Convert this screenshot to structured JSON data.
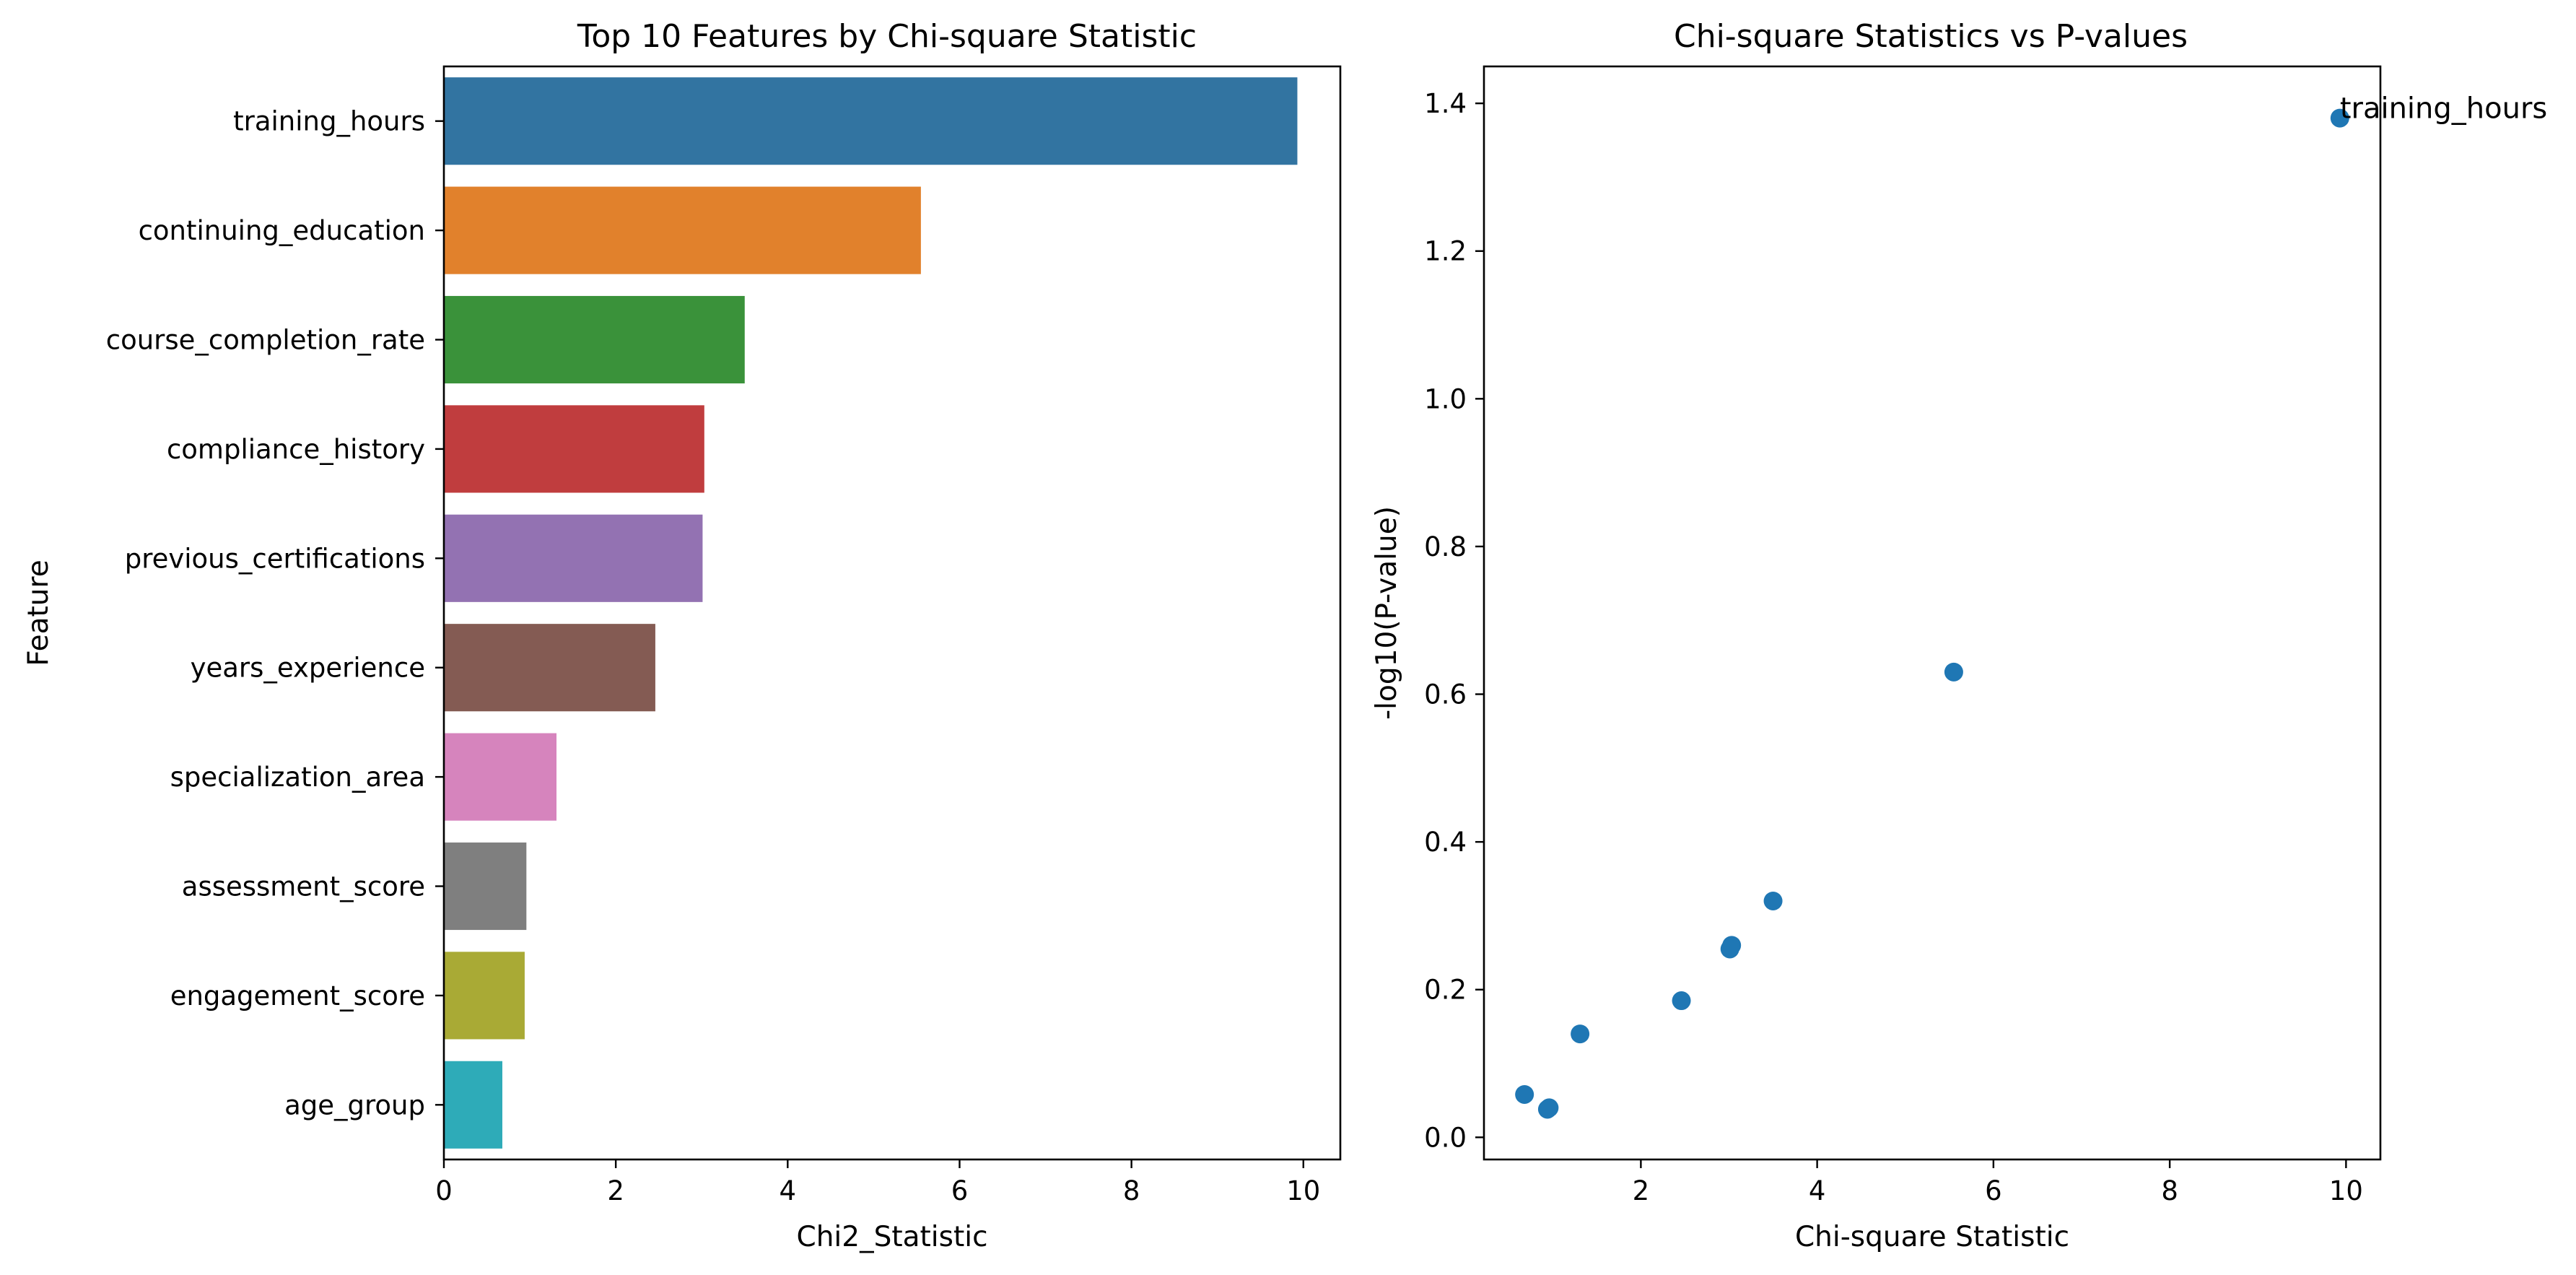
{
  "chart_data": [
    {
      "type": "bar",
      "orientation": "horizontal",
      "title": "Top 10 Features by Chi-square Statistic",
      "xlabel": "Chi2_Statistic",
      "ylabel": "Feature",
      "categories": [
        "training_hours",
        "continuing_education",
        "course_completion_rate",
        "compliance_history",
        "previous_certifications",
        "years_experience",
        "specialization_area",
        "assessment_score",
        "engagement_score",
        "age_group"
      ],
      "values": [
        9.93,
        5.55,
        3.5,
        3.03,
        3.01,
        2.46,
        1.31,
        0.96,
        0.94,
        0.68
      ],
      "colors": [
        "#3274a1",
        "#e1812c",
        "#3a923a",
        "#c03d3e",
        "#9372b2",
        "#845b53",
        "#d684bd",
        "#7f7f7f",
        "#a9aa35",
        "#2eabb8"
      ],
      "xlim": [
        0,
        10.43
      ],
      "xticks": [
        0,
        2,
        4,
        6,
        8,
        10
      ],
      "grid": false
    },
    {
      "type": "scatter",
      "title": "Chi-square Statistics vs P-values",
      "xlabel": "Chi-square Statistic",
      "ylabel": "-log10(P-value)",
      "x": [
        9.93,
        5.55,
        3.5,
        3.03,
        3.01,
        2.46,
        1.31,
        0.96,
        0.94,
        0.68
      ],
      "y": [
        1.38,
        0.63,
        0.32,
        0.26,
        0.255,
        0.185,
        0.14,
        0.04,
        0.038,
        0.058
      ],
      "xlim": [
        0.22,
        10.39
      ],
      "ylim": [
        -0.03,
        1.45
      ],
      "xticks": [
        2,
        4,
        6,
        8,
        10
      ],
      "yticks": [
        0.0,
        0.2,
        0.4,
        0.6,
        0.8,
        1.0,
        1.2,
        1.4
      ],
      "color": "#1f77b4",
      "annotations": [
        {
          "text": "training_hours",
          "x": 9.93,
          "y": 1.38
        }
      ],
      "grid": false
    }
  ]
}
